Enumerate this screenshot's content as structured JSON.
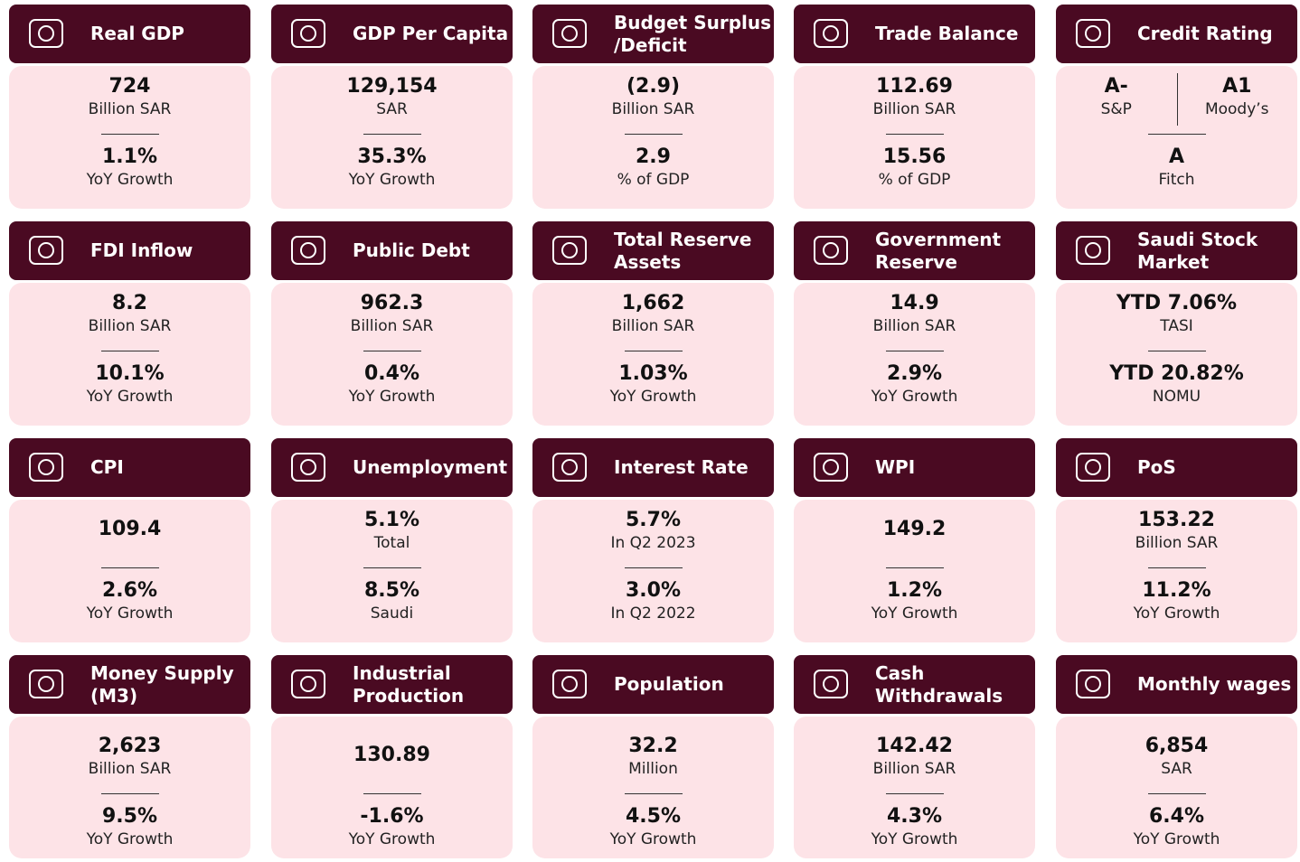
{
  "cards": [
    {
      "title": [
        "Real GDP"
      ],
      "items": [
        {
          "value": "724",
          "label": "Billion SAR"
        },
        {
          "value": "1.1%",
          "label": "YoY Growth"
        }
      ]
    },
    {
      "title": [
        "GDP Per Capita"
      ],
      "items": [
        {
          "value": "129,154",
          "label": "SAR"
        },
        {
          "value": "35.3%",
          "label": "YoY Growth"
        }
      ]
    },
    {
      "title": [
        "Budget Surplus",
        "/Deficit"
      ],
      "items": [
        {
          "value": "(2.9)",
          "label": "Billion SAR"
        },
        {
          "value": "2.9",
          "label": "% of GDP"
        }
      ]
    },
    {
      "title": [
        "Trade Balance"
      ],
      "items": [
        {
          "value": "112.69",
          "label": "Billion SAR"
        },
        {
          "value": "15.56",
          "label": "% of GDP"
        }
      ]
    },
    {
      "title": [
        "Credit Rating"
      ],
      "items": [
        {
          "value": "A-",
          "label": "S&P"
        },
        {
          "value": "A1",
          "label": "Moody’s"
        },
        {
          "value": "A",
          "label": "Fitch"
        }
      ]
    },
    {
      "title": [
        "FDI Inflow"
      ],
      "items": [
        {
          "value": "8.2",
          "label": "Billion SAR"
        },
        {
          "value": "10.1%",
          "label": "YoY Growth"
        }
      ]
    },
    {
      "title": [
        "Public Debt"
      ],
      "items": [
        {
          "value": "962.3",
          "label": "Billion SAR"
        },
        {
          "value": "0.4%",
          "label": "YoY Growth"
        }
      ]
    },
    {
      "title": [
        "Total Reserve",
        "Assets"
      ],
      "items": [
        {
          "value": "1,662",
          "label": "Billion SAR"
        },
        {
          "value": "1.03%",
          "label": "YoY Growth"
        }
      ]
    },
    {
      "title": [
        "Government",
        "Reserve"
      ],
      "items": [
        {
          "value": "14.9",
          "label": "Billion SAR"
        },
        {
          "value": "2.9%",
          "label": "YoY Growth"
        }
      ]
    },
    {
      "title": [
        "Saudi Stock",
        "Market"
      ],
      "items": [
        {
          "value": "YTD 7.06%",
          "label": "TASI"
        },
        {
          "value": "YTD 20.82%",
          "label": "NOMU"
        }
      ]
    },
    {
      "title": [
        "CPI"
      ],
      "items": [
        {
          "value": "109.4"
        },
        {
          "value": "2.6%",
          "label": "YoY Growth"
        }
      ]
    },
    {
      "title": [
        "Unemployment"
      ],
      "items": [
        {
          "value": "5.1%",
          "label": "Total"
        },
        {
          "value": "8.5%",
          "label": "Saudi"
        }
      ]
    },
    {
      "title": [
        "Interest Rate"
      ],
      "items": [
        {
          "value": "5.7%",
          "label": "In Q2 2023"
        },
        {
          "value": "3.0%",
          "label": "In Q2 2022"
        }
      ]
    },
    {
      "title": [
        "WPI"
      ],
      "items": [
        {
          "value": "149.2"
        },
        {
          "value": "1.2%",
          "label": "YoY Growth"
        }
      ]
    },
    {
      "title": [
        "PoS"
      ],
      "items": [
        {
          "value": "153.22",
          "label": "Billion SAR"
        },
        {
          "value": "11.2%",
          "label": "YoY Growth"
        }
      ]
    },
    {
      "title": [
        "Money Supply",
        "(M3)"
      ],
      "items": [
        {
          "value": "2,623",
          "label": "Billion SAR"
        },
        {
          "value": "9.5%",
          "label": "YoY Growth"
        }
      ]
    },
    {
      "title": [
        "Industrial",
        "Production"
      ],
      "items": [
        {
          "value": "130.89"
        },
        {
          "value": "-1.6%",
          "label": "YoY Growth"
        }
      ]
    },
    {
      "title": [
        "Population"
      ],
      "items": [
        {
          "value": "32.2",
          "label": "Million"
        },
        {
          "value": "4.5%",
          "label": "YoY Growth"
        }
      ]
    },
    {
      "title": [
        "Cash",
        "Withdrawals"
      ],
      "items": [
        {
          "value": "142.42",
          "label": "Billion SAR"
        },
        {
          "value": "4.3%",
          "label": "YoY Growth"
        }
      ]
    },
    {
      "title": [
        "Monthly wages"
      ],
      "items": [
        {
          "value": "6,854",
          "label": "SAR"
        },
        {
          "value": "6.4%",
          "label": "YoY Growth"
        }
      ]
    }
  ]
}
